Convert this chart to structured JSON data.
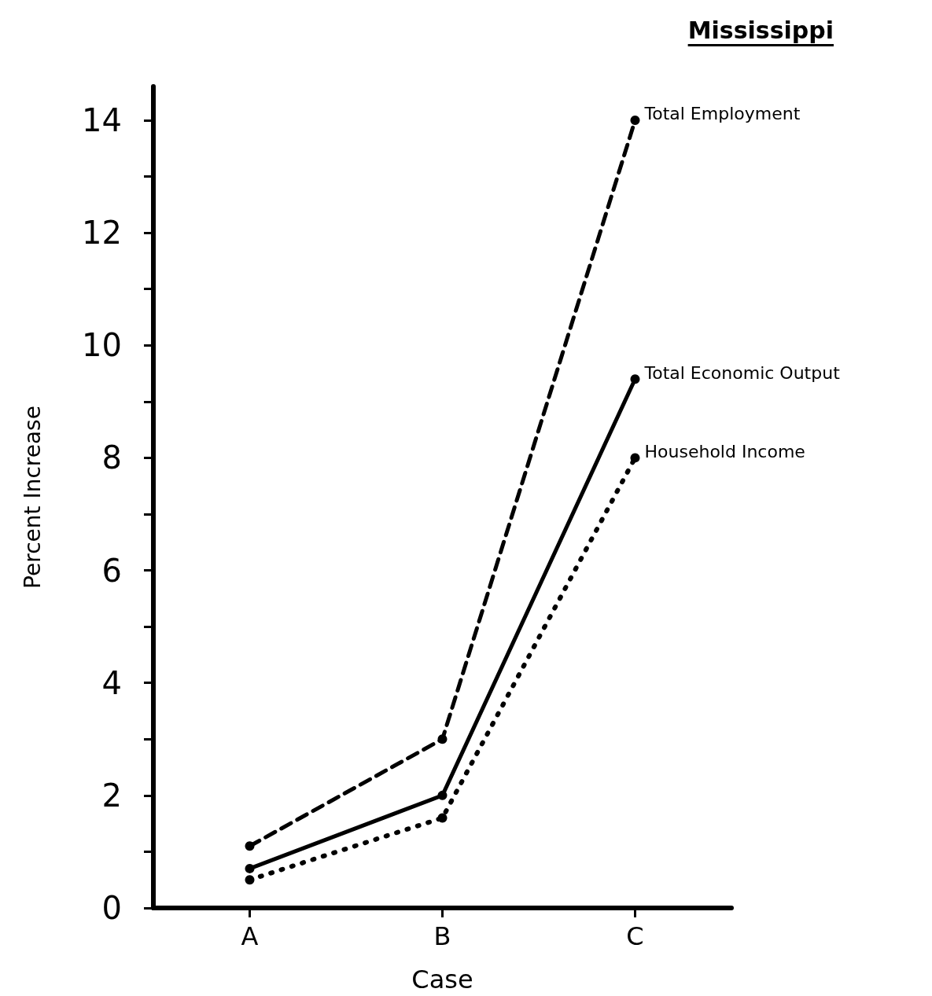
{
  "chart_data": {
    "type": "line",
    "title": "Mississippi",
    "xlabel": "Case",
    "ylabel": "Percent Increase",
    "categories": [
      "A",
      "B",
      "C"
    ],
    "series": [
      {
        "name": "Total Employment",
        "color": "#000000",
        "values": [
          1.1,
          3.0,
          14.0
        ],
        "line_style": "dashed"
      },
      {
        "name": "Total Economic Output",
        "color": "#000000",
        "values": [
          0.7,
          2.0,
          9.4
        ],
        "line_style": "solid"
      },
      {
        "name": "Household Income",
        "color": "#000000",
        "values": [
          0.5,
          1.6,
          8.0
        ],
        "line_style": "dotted"
      }
    ],
    "ylim": [
      0,
      14.6
    ],
    "yticks": [
      0,
      {
        "value": 1,
        "label": null
      },
      2,
      {
        "value": 3,
        "label": null
      },
      4,
      {
        "value": 5,
        "label": null
      },
      6,
      {
        "value": 7,
        "label": null
      },
      8,
      {
        "value": 9,
        "label": null
      },
      10,
      {
        "value": 11,
        "label": null
      },
      12,
      {
        "value": 13,
        "label": null
      },
      14
    ],
    "marker": "circle",
    "grid": false,
    "legend": false
  }
}
